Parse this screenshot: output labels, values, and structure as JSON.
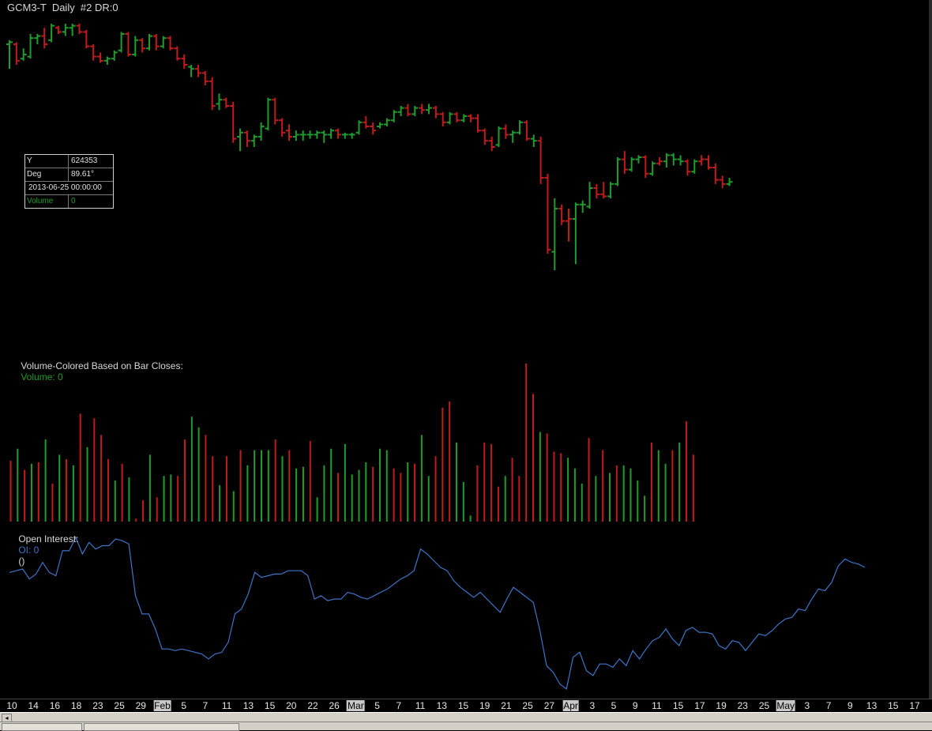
{
  "window": {
    "title": "GCM3-T  Daily  #2 DR:0"
  },
  "data_window": {
    "rows": [
      {
        "key": "Y",
        "value": "624353"
      },
      {
        "key": "Deg",
        "value": "89.61°"
      }
    ],
    "datetime": "2013-06-25  00:00:00",
    "volume_key": "Volume",
    "volume_value": "0"
  },
  "volume_panel": {
    "label": "Volume-Colored Based on Bar Closes:",
    "value_text": "Volume: 0"
  },
  "oi_panel": {
    "label": "Open Interest:",
    "value_text": "OI: 0",
    "extra": "()"
  },
  "colors": {
    "up": "#1f9d2c",
    "down": "#c21b1b",
    "oi_line": "#3c74c8",
    "background": "#000000"
  },
  "time_axis": {
    "labels": [
      "10",
      "14",
      "16",
      "18",
      "23",
      "25",
      "29",
      "Feb",
      "5",
      "7",
      "11",
      "13",
      "15",
      "20",
      "22",
      "26",
      "Mar",
      "5",
      "7",
      "11",
      "13",
      "15",
      "19",
      "21",
      "25",
      "27",
      "Apr",
      "3",
      "5",
      "9",
      "11",
      "15",
      "17",
      "19",
      "23",
      "25",
      "May",
      "3",
      "7",
      "9",
      "13",
      "15",
      "17"
    ],
    "month_labels": [
      "Feb",
      "Mar",
      "Apr",
      "May"
    ]
  },
  "chart_data": [
    {
      "type": "ohlc",
      "panel": "price",
      "y_scale": "relative (no price axis shown)",
      "bars": [
        {
          "o": 0.9,
          "h": 0.92,
          "l": 0.78,
          "c": 0.91,
          "d": "up"
        },
        {
          "o": 0.9,
          "h": 0.91,
          "l": 0.8,
          "c": 0.82,
          "d": "down"
        },
        {
          "o": 0.83,
          "h": 0.88,
          "l": 0.82,
          "c": 0.85,
          "d": "up"
        },
        {
          "o": 0.84,
          "h": 0.95,
          "l": 0.83,
          "c": 0.93,
          "d": "up"
        },
        {
          "o": 0.93,
          "h": 0.95,
          "l": 0.9,
          "c": 0.94,
          "d": "up"
        },
        {
          "o": 0.94,
          "h": 0.98,
          "l": 0.88,
          "c": 0.9,
          "d": "down"
        },
        {
          "o": 0.92,
          "h": 1.0,
          "l": 0.91,
          "c": 0.99,
          "d": "up"
        },
        {
          "o": 0.98,
          "h": 0.99,
          "l": 0.95,
          "c": 0.96,
          "d": "down"
        },
        {
          "o": 0.96,
          "h": 1.0,
          "l": 0.94,
          "c": 0.98,
          "d": "up"
        },
        {
          "o": 0.98,
          "h": 1.0,
          "l": 0.94,
          "c": 0.99,
          "d": "up"
        },
        {
          "o": 0.99,
          "h": 1.0,
          "l": 0.95,
          "c": 0.96,
          "d": "down"
        },
        {
          "o": 0.96,
          "h": 0.97,
          "l": 0.88,
          "c": 0.89,
          "d": "down"
        },
        {
          "o": 0.89,
          "h": 0.9,
          "l": 0.82,
          "c": 0.84,
          "d": "down"
        },
        {
          "o": 0.84,
          "h": 0.86,
          "l": 0.81,
          "c": 0.82,
          "d": "down"
        },
        {
          "o": 0.82,
          "h": 0.84,
          "l": 0.8,
          "c": 0.83,
          "d": "up"
        },
        {
          "o": 0.83,
          "h": 0.87,
          "l": 0.82,
          "c": 0.86,
          "d": "up"
        },
        {
          "o": 0.87,
          "h": 0.96,
          "l": 0.86,
          "c": 0.95,
          "d": "up"
        },
        {
          "o": 0.95,
          "h": 0.96,
          "l": 0.84,
          "c": 0.85,
          "d": "down"
        },
        {
          "o": 0.85,
          "h": 0.94,
          "l": 0.84,
          "c": 0.92,
          "d": "up"
        },
        {
          "o": 0.92,
          "h": 0.93,
          "l": 0.86,
          "c": 0.88,
          "d": "down"
        },
        {
          "o": 0.88,
          "h": 0.95,
          "l": 0.87,
          "c": 0.94,
          "d": "up"
        },
        {
          "o": 0.94,
          "h": 0.95,
          "l": 0.87,
          "c": 0.89,
          "d": "down"
        },
        {
          "o": 0.89,
          "h": 0.94,
          "l": 0.88,
          "c": 0.93,
          "d": "up"
        },
        {
          "o": 0.93,
          "h": 0.94,
          "l": 0.87,
          "c": 0.88,
          "d": "down"
        },
        {
          "o": 0.88,
          "h": 0.89,
          "l": 0.82,
          "c": 0.83,
          "d": "down"
        },
        {
          "o": 0.83,
          "h": 0.85,
          "l": 0.78,
          "c": 0.8,
          "d": "down"
        },
        {
          "o": 0.79,
          "h": 0.8,
          "l": 0.74,
          "c": 0.78,
          "d": "up"
        },
        {
          "o": 0.78,
          "h": 0.8,
          "l": 0.74,
          "c": 0.76,
          "d": "down"
        },
        {
          "o": 0.76,
          "h": 0.77,
          "l": 0.7,
          "c": 0.72,
          "d": "down"
        },
        {
          "o": 0.72,
          "h": 0.74,
          "l": 0.58,
          "c": 0.6,
          "d": "down"
        },
        {
          "o": 0.61,
          "h": 0.66,
          "l": 0.58,
          "c": 0.63,
          "d": "up"
        },
        {
          "o": 0.63,
          "h": 0.64,
          "l": 0.59,
          "c": 0.6,
          "d": "down"
        },
        {
          "o": 0.6,
          "h": 0.62,
          "l": 0.42,
          "c": 0.44,
          "d": "down"
        },
        {
          "o": 0.45,
          "h": 0.49,
          "l": 0.38,
          "c": 0.47,
          "d": "up"
        },
        {
          "o": 0.47,
          "h": 0.48,
          "l": 0.4,
          "c": 0.43,
          "d": "down"
        },
        {
          "o": 0.43,
          "h": 0.46,
          "l": 0.4,
          "c": 0.45,
          "d": "up"
        },
        {
          "o": 0.45,
          "h": 0.52,
          "l": 0.43,
          "c": 0.5,
          "d": "up"
        },
        {
          "o": 0.49,
          "h": 0.64,
          "l": 0.48,
          "c": 0.63,
          "d": "up"
        },
        {
          "o": 0.63,
          "h": 0.64,
          "l": 0.51,
          "c": 0.53,
          "d": "down"
        },
        {
          "o": 0.53,
          "h": 0.54,
          "l": 0.45,
          "c": 0.47,
          "d": "down"
        },
        {
          "o": 0.48,
          "h": 0.51,
          "l": 0.43,
          "c": 0.45,
          "d": "down"
        },
        {
          "o": 0.45,
          "h": 0.48,
          "l": 0.43,
          "c": 0.46,
          "d": "up"
        },
        {
          "o": 0.46,
          "h": 0.48,
          "l": 0.43,
          "c": 0.46,
          "d": "up"
        },
        {
          "o": 0.46,
          "h": 0.48,
          "l": 0.44,
          "c": 0.46,
          "d": "up"
        },
        {
          "o": 0.46,
          "h": 0.48,
          "l": 0.44,
          "c": 0.47,
          "d": "up"
        },
        {
          "o": 0.47,
          "h": 0.48,
          "l": 0.42,
          "c": 0.46,
          "d": "up"
        },
        {
          "o": 0.46,
          "h": 0.49,
          "l": 0.44,
          "c": 0.48,
          "d": "up"
        },
        {
          "o": 0.48,
          "h": 0.49,
          "l": 0.44,
          "c": 0.46,
          "d": "down"
        },
        {
          "o": 0.46,
          "h": 0.47,
          "l": 0.44,
          "c": 0.46,
          "d": "up"
        },
        {
          "o": 0.46,
          "h": 0.47,
          "l": 0.44,
          "c": 0.46,
          "d": "up"
        },
        {
          "o": 0.47,
          "h": 0.53,
          "l": 0.46,
          "c": 0.52,
          "d": "up"
        },
        {
          "o": 0.52,
          "h": 0.55,
          "l": 0.49,
          "c": 0.5,
          "d": "down"
        },
        {
          "o": 0.5,
          "h": 0.52,
          "l": 0.46,
          "c": 0.48,
          "d": "down"
        },
        {
          "o": 0.5,
          "h": 0.52,
          "l": 0.49,
          "c": 0.51,
          "d": "up"
        },
        {
          "o": 0.51,
          "h": 0.54,
          "l": 0.5,
          "c": 0.53,
          "d": "up"
        },
        {
          "o": 0.53,
          "h": 0.58,
          "l": 0.52,
          "c": 0.57,
          "d": "up"
        },
        {
          "o": 0.57,
          "h": 0.6,
          "l": 0.55,
          "c": 0.59,
          "d": "up"
        },
        {
          "o": 0.59,
          "h": 0.61,
          "l": 0.55,
          "c": 0.56,
          "d": "down"
        },
        {
          "o": 0.56,
          "h": 0.6,
          "l": 0.55,
          "c": 0.59,
          "d": "up"
        },
        {
          "o": 0.59,
          "h": 0.61,
          "l": 0.56,
          "c": 0.58,
          "d": "down"
        },
        {
          "o": 0.58,
          "h": 0.61,
          "l": 0.56,
          "c": 0.59,
          "d": "up"
        },
        {
          "o": 0.59,
          "h": 0.6,
          "l": 0.54,
          "c": 0.56,
          "d": "down"
        },
        {
          "o": 0.56,
          "h": 0.57,
          "l": 0.5,
          "c": 0.52,
          "d": "down"
        },
        {
          "o": 0.52,
          "h": 0.57,
          "l": 0.51,
          "c": 0.56,
          "d": "up"
        },
        {
          "o": 0.56,
          "h": 0.57,
          "l": 0.52,
          "c": 0.53,
          "d": "down"
        },
        {
          "o": 0.53,
          "h": 0.56,
          "l": 0.52,
          "c": 0.55,
          "d": "up"
        },
        {
          "o": 0.55,
          "h": 0.56,
          "l": 0.52,
          "c": 0.54,
          "d": "down"
        },
        {
          "o": 0.54,
          "h": 0.56,
          "l": 0.47,
          "c": 0.48,
          "d": "down"
        },
        {
          "o": 0.48,
          "h": 0.49,
          "l": 0.41,
          "c": 0.43,
          "d": "down"
        },
        {
          "o": 0.43,
          "h": 0.45,
          "l": 0.38,
          "c": 0.4,
          "d": "down"
        },
        {
          "o": 0.41,
          "h": 0.5,
          "l": 0.4,
          "c": 0.49,
          "d": "up"
        },
        {
          "o": 0.49,
          "h": 0.51,
          "l": 0.44,
          "c": 0.46,
          "d": "down"
        },
        {
          "o": 0.46,
          "h": 0.48,
          "l": 0.42,
          "c": 0.47,
          "d": "up"
        },
        {
          "o": 0.47,
          "h": 0.53,
          "l": 0.46,
          "c": 0.52,
          "d": "up"
        },
        {
          "o": 0.52,
          "h": 0.53,
          "l": 0.43,
          "c": 0.44,
          "d": "down"
        },
        {
          "o": 0.44,
          "h": 0.46,
          "l": 0.4,
          "c": 0.43,
          "d": "up"
        },
        {
          "o": 0.43,
          "h": 0.45,
          "l": 0.22,
          "c": 0.25,
          "d": "down"
        },
        {
          "o": 0.25,
          "h": 0.27,
          "l": -0.12,
          "c": -0.1,
          "d": "down"
        },
        {
          "o": -0.11,
          "h": 0.15,
          "l": -0.2,
          "c": 0.1,
          "d": "up"
        },
        {
          "o": 0.1,
          "h": 0.12,
          "l": 0.02,
          "c": 0.04,
          "d": "down"
        },
        {
          "o": 0.04,
          "h": 0.1,
          "l": -0.06,
          "c": 0.05,
          "d": "down"
        },
        {
          "o": 0.05,
          "h": 0.13,
          "l": -0.17,
          "c": 0.12,
          "d": "up"
        },
        {
          "o": 0.12,
          "h": 0.14,
          "l": 0.08,
          "c": 0.12,
          "d": "up"
        },
        {
          "o": 0.11,
          "h": 0.23,
          "l": 0.1,
          "c": 0.2,
          "d": "up"
        },
        {
          "o": 0.2,
          "h": 0.22,
          "l": 0.15,
          "c": 0.17,
          "d": "down"
        },
        {
          "o": 0.17,
          "h": 0.23,
          "l": 0.15,
          "c": 0.16,
          "d": "down"
        },
        {
          "o": 0.16,
          "h": 0.23,
          "l": 0.15,
          "c": 0.22,
          "d": "up"
        },
        {
          "o": 0.22,
          "h": 0.35,
          "l": 0.21,
          "c": 0.34,
          "d": "up"
        },
        {
          "o": 0.34,
          "h": 0.38,
          "l": 0.27,
          "c": 0.29,
          "d": "down"
        },
        {
          "o": 0.29,
          "h": 0.35,
          "l": 0.28,
          "c": 0.34,
          "d": "up"
        },
        {
          "o": 0.34,
          "h": 0.36,
          "l": 0.32,
          "c": 0.35,
          "d": "up"
        },
        {
          "o": 0.35,
          "h": 0.36,
          "l": 0.25,
          "c": 0.27,
          "d": "down"
        },
        {
          "o": 0.27,
          "h": 0.33,
          "l": 0.26,
          "c": 0.32,
          "d": "up"
        },
        {
          "o": 0.32,
          "h": 0.35,
          "l": 0.31,
          "c": 0.33,
          "d": "down"
        },
        {
          "o": 0.33,
          "h": 0.37,
          "l": 0.3,
          "c": 0.36,
          "d": "up"
        },
        {
          "o": 0.36,
          "h": 0.37,
          "l": 0.31,
          "c": 0.34,
          "d": "up"
        },
        {
          "o": 0.34,
          "h": 0.36,
          "l": 0.31,
          "c": 0.33,
          "d": "up"
        },
        {
          "o": 0.33,
          "h": 0.34,
          "l": 0.26,
          "c": 0.28,
          "d": "down"
        },
        {
          "o": 0.28,
          "h": 0.34,
          "l": 0.27,
          "c": 0.33,
          "d": "up"
        },
        {
          "o": 0.33,
          "h": 0.36,
          "l": 0.31,
          "c": 0.34,
          "d": "down"
        },
        {
          "o": 0.34,
          "h": 0.36,
          "l": 0.29,
          "c": 0.3,
          "d": "down"
        },
        {
          "o": 0.3,
          "h": 0.32,
          "l": 0.22,
          "c": 0.24,
          "d": "down"
        },
        {
          "o": 0.24,
          "h": 0.26,
          "l": 0.2,
          "c": 0.22,
          "d": "down"
        },
        {
          "o": 0.22,
          "h": 0.25,
          "l": 0.21,
          "c": 0.23,
          "d": "up"
        }
      ]
    },
    {
      "type": "bar",
      "panel": "volume",
      "title": "Volume-Colored Based on Bar Closes:",
      "values": [
        40,
        48,
        34,
        38,
        39,
        54,
        25,
        44,
        41,
        37,
        71,
        49,
        68,
        57,
        41,
        27,
        38,
        29,
        2,
        14,
        44,
        16,
        30,
        31,
        30,
        54,
        69,
        62,
        57,
        43,
        24,
        43,
        20,
        47,
        37,
        47,
        47,
        47,
        54,
        43,
        47,
        35,
        36,
        53,
        16,
        37,
        48,
        32,
        51,
        31,
        34,
        39,
        36,
        48,
        47,
        35,
        32,
        39,
        38,
        57,
        30,
        43,
        75,
        79,
        52,
        26,
        4,
        37,
        52,
        51,
        23,
        30,
        42,
        30,
        104,
        84,
        59,
        58,
        46,
        45,
        42,
        35,
        25,
        55,
        30,
        47,
        32,
        37,
        37,
        35,
        27,
        17,
        52,
        47,
        38,
        47,
        52,
        66,
        44
      ],
      "up_down": "down,up,down,up,down,up,down,up,down,up,down,up,down,down,down,up,down,up,down,down,up,down,up,up,down,down,up,up,down,down,up,down,up,down,up,up,up,up,down,up,down,up,up,down,up,up,up,down,up,up,up,up,down,up,up,down,down,up,down,up,up,down,down,down,up,up,up,down,down,down,down,up,down,down,down,down,up,down,down,down,up,up,up,down,up,down,up,down,up,up,up,up,down,up,up,down,up,down,down"
    },
    {
      "type": "line",
      "panel": "open_interest",
      "title": "Open Interest:",
      "values": [
        72,
        73,
        74,
        68,
        71,
        78,
        72,
        70,
        85,
        85,
        93,
        83,
        90,
        86,
        88,
        88,
        92,
        91,
        89,
        58,
        47,
        47,
        38,
        26,
        26,
        25,
        26,
        25,
        24,
        23,
        20,
        23,
        24,
        30,
        47,
        50,
        59,
        72,
        69,
        70,
        71,
        71,
        73,
        73,
        73,
        70,
        56,
        58,
        55,
        56,
        56,
        60,
        59,
        57,
        56,
        58,
        60,
        62,
        65,
        68,
        70,
        73,
        86,
        83,
        79,
        75,
        73,
        67,
        63,
        60,
        57,
        60,
        56,
        52,
        48,
        56,
        63,
        60,
        57,
        54,
        37,
        16,
        12,
        5,
        2,
        21,
        24,
        13,
        10,
        17,
        17,
        15,
        20,
        16,
        25,
        20,
        26,
        31,
        33,
        38,
        32,
        28,
        37,
        39,
        36,
        36,
        35,
        28,
        26,
        31,
        30,
        25,
        30,
        35,
        34,
        37,
        41,
        44,
        45,
        50,
        49,
        56,
        62,
        61,
        66,
        76,
        80,
        78,
        77,
        75
      ]
    }
  ]
}
